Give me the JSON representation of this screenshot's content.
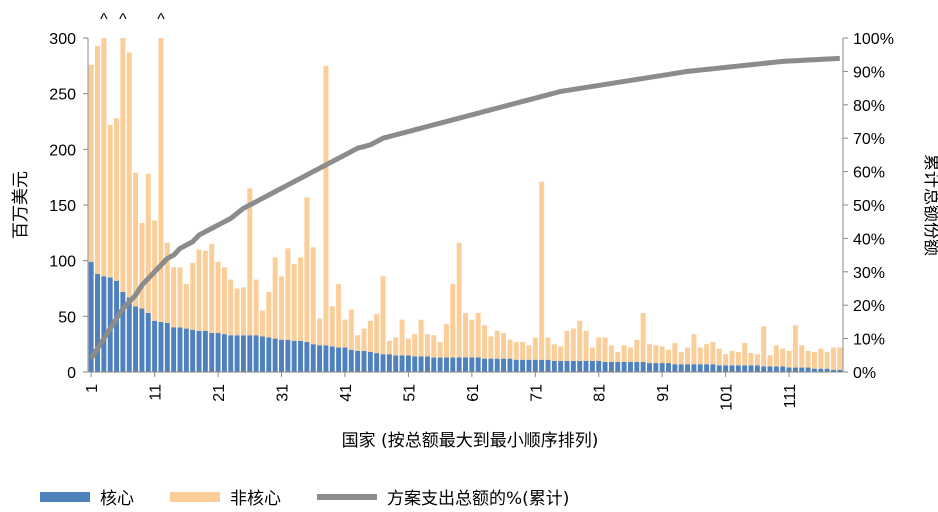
{
  "colors": {
    "core": "#4f81bd",
    "noncore": "#fbcd98",
    "cumulative": "#8c8c8c"
  },
  "chart_data": {
    "type": "bar",
    "xlabel": "国家 (按总额最大到最小顺序排列)",
    "ylabel": "百万美元",
    "y2label": "累计总额份额",
    "ylim": [
      0,
      300
    ],
    "y2lim": [
      0,
      1
    ],
    "yticks": [
      "0",
      "50",
      "100",
      "150",
      "200",
      "250",
      "300"
    ],
    "y2ticks": [
      "0%",
      "10%",
      "20%",
      "30%",
      "40%",
      "50%",
      "60%",
      "70%",
      "80%",
      "90%",
      "100%"
    ],
    "xticks": [
      "1",
      "11",
      "21",
      "31",
      "41",
      "51",
      "61",
      "71",
      "81",
      "91",
      "101",
      "111"
    ],
    "overflow_marker": "^",
    "stacked": true,
    "legend_position": "bottom",
    "series": [
      {
        "name": "核心",
        "values": [
          99,
          88,
          86,
          85,
          82,
          72,
          67,
          59,
          57,
          53,
          46,
          45,
          44,
          40,
          40,
          39,
          38,
          37,
          37,
          35,
          35,
          34,
          33,
          33,
          33,
          33,
          33,
          32,
          31,
          30,
          29,
          29,
          28,
          28,
          27,
          25,
          24,
          24,
          23,
          22,
          22,
          20,
          19,
          19,
          18,
          17,
          16,
          16,
          15,
          15,
          15,
          14,
          14,
          14,
          13,
          13,
          13,
          13,
          13,
          13,
          13,
          13,
          12,
          12,
          12,
          12,
          12,
          11,
          11,
          11,
          11,
          11,
          11,
          10,
          10,
          10,
          10,
          10,
          10,
          10,
          10,
          9,
          9,
          9,
          9,
          9,
          9,
          9,
          8,
          8,
          8,
          8,
          7,
          7,
          7,
          7,
          7,
          7,
          7,
          6,
          6,
          6,
          6,
          6,
          6,
          6,
          5,
          5,
          5,
          5,
          4,
          4,
          4,
          4,
          3,
          3,
          3,
          2,
          2
        ]
      },
      {
        "name": "非核心",
        "values": [
          177,
          205,
          246,
          137,
          146,
          236,
          220,
          120,
          77,
          125,
          90,
          272,
          72,
          54,
          54,
          40,
          60,
          73,
          72,
          80,
          64,
          60,
          50,
          42,
          43,
          132,
          50,
          23,
          41,
          73,
          57,
          82,
          69,
          75,
          130,
          87,
          24,
          251,
          36,
          57,
          25,
          36,
          14,
          20,
          28,
          35,
          70,
          12,
          16,
          32,
          15,
          20,
          33,
          20,
          20,
          14,
          30,
          66,
          103,
          40,
          34,
          40,
          30,
          20,
          25,
          23,
          17,
          16,
          16,
          13,
          20,
          160,
          20,
          15,
          13,
          27,
          29,
          36,
          27,
          12,
          21,
          22,
          15,
          9,
          15,
          13,
          20,
          44,
          17,
          16,
          15,
          12,
          19,
          11,
          15,
          27,
          15,
          18,
          20,
          15,
          10,
          13,
          12,
          20,
          11,
          10,
          36,
          10,
          19,
          16,
          15,
          38,
          20,
          15,
          15,
          18,
          15,
          20,
          20
        ]
      },
      {
        "name": "方案支出总额的%(累计)",
        "type": "line",
        "axis": "right",
        "values": [
          0.04,
          0.07,
          0.1,
          0.13,
          0.16,
          0.19,
          0.21,
          0.23,
          0.26,
          0.28,
          0.3,
          0.32,
          0.34,
          0.35,
          0.37,
          0.38,
          0.39,
          0.41,
          0.42,
          0.43,
          0.44,
          0.45,
          0.46,
          0.475,
          0.49,
          0.5,
          0.51,
          0.52,
          0.53,
          0.54,
          0.55,
          0.56,
          0.57,
          0.58,
          0.59,
          0.6,
          0.61,
          0.62,
          0.63,
          0.64,
          0.65,
          0.66,
          0.67,
          0.675,
          0.68,
          0.69,
          0.7,
          0.705,
          0.71,
          0.715,
          0.72,
          0.725,
          0.73,
          0.735,
          0.74,
          0.745,
          0.75,
          0.755,
          0.76,
          0.765,
          0.77,
          0.775,
          0.78,
          0.785,
          0.79,
          0.795,
          0.8,
          0.805,
          0.81,
          0.815,
          0.82,
          0.825,
          0.83,
          0.835,
          0.84,
          0.843,
          0.846,
          0.849,
          0.852,
          0.855,
          0.858,
          0.861,
          0.864,
          0.867,
          0.87,
          0.873,
          0.876,
          0.879,
          0.882,
          0.885,
          0.888,
          0.891,
          0.894,
          0.897,
          0.9,
          0.902,
          0.904,
          0.906,
          0.908,
          0.91,
          0.912,
          0.914,
          0.916,
          0.918,
          0.92,
          0.922,
          0.924,
          0.926,
          0.928,
          0.93,
          0.931,
          0.932,
          0.933,
          0.934,
          0.935,
          0.936,
          0.937,
          0.938,
          0.939
        ]
      }
    ]
  }
}
